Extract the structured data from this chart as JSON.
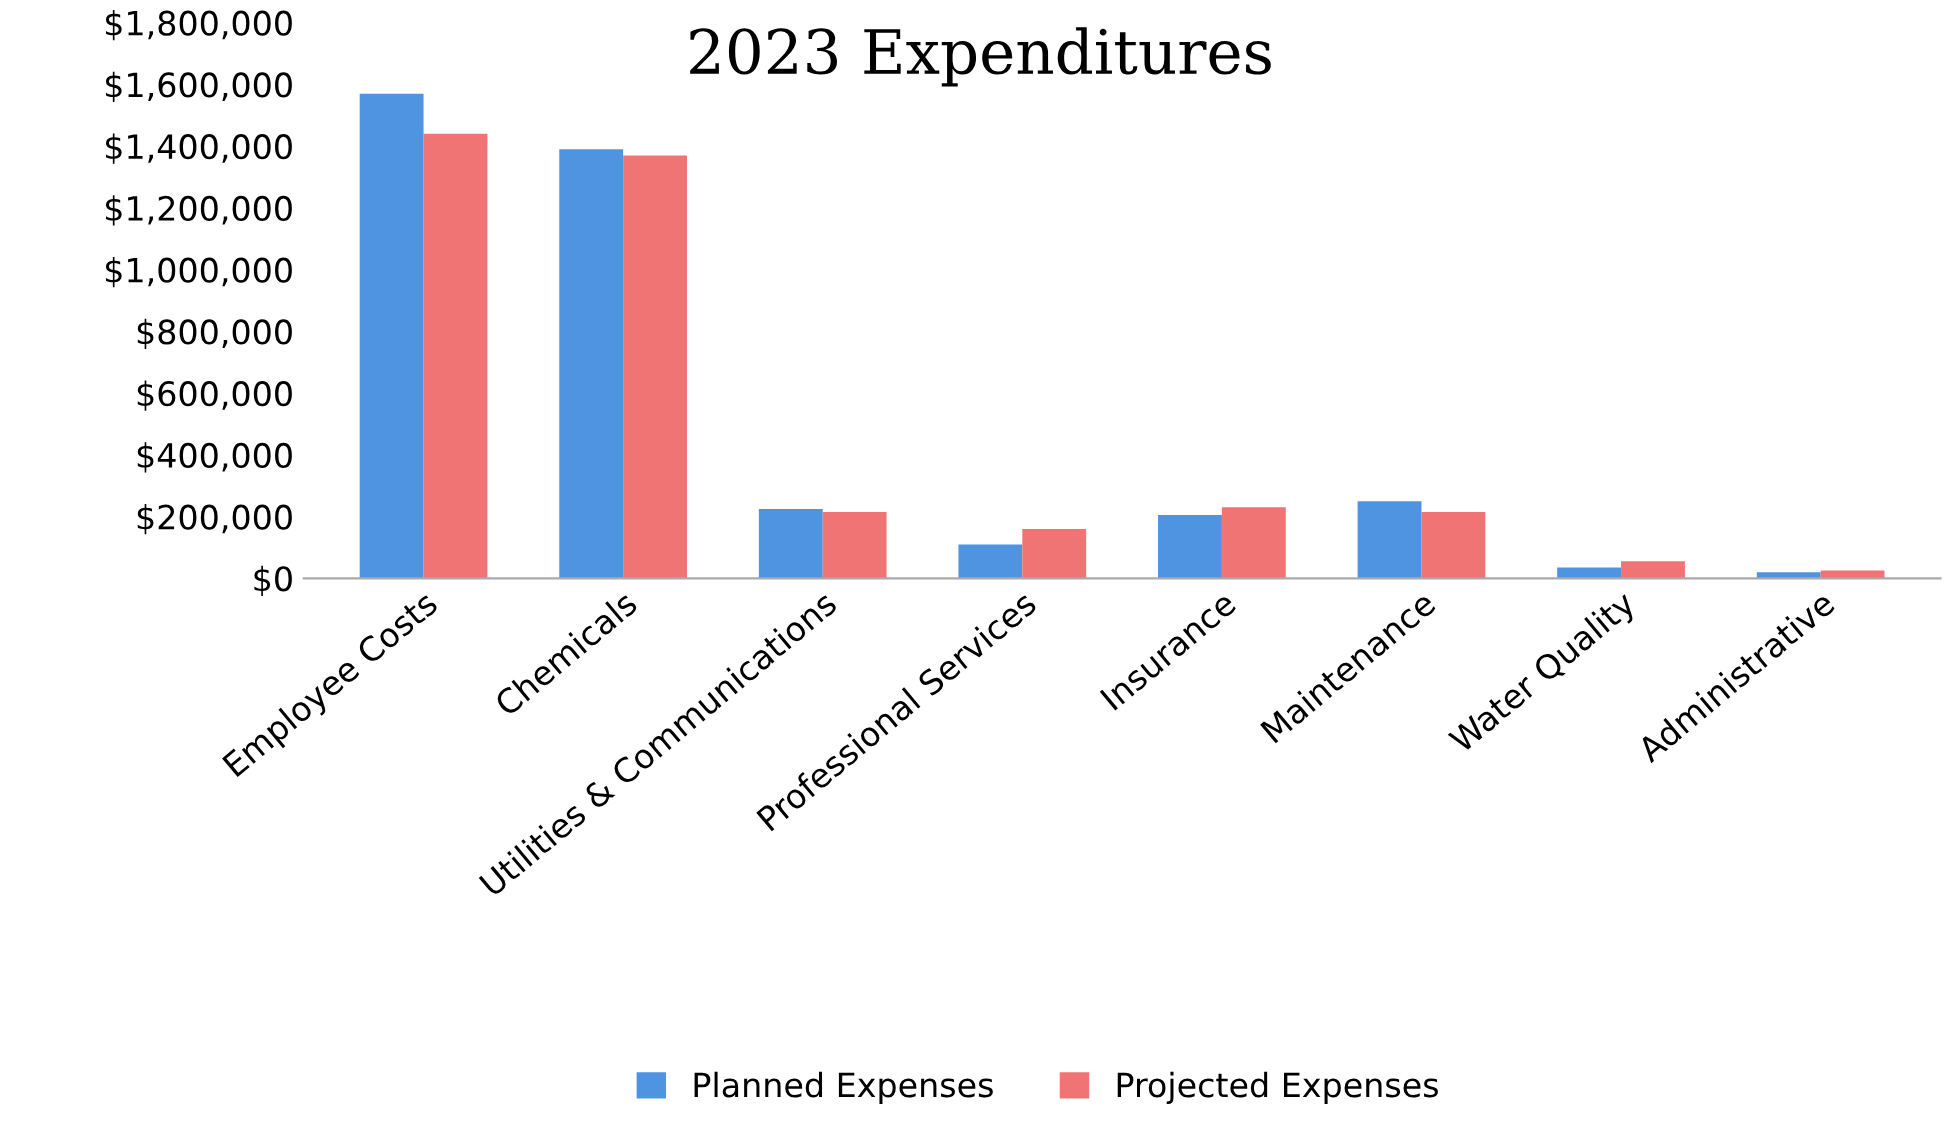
{
  "chart_data": {
    "type": "bar",
    "title": "2023 Expenditures",
    "categories": [
      "Employee Costs",
      "Chemicals",
      "Utilities & Communications",
      "Professional Services",
      "Insurance",
      "Maintenance",
      "Water Quality",
      "Administrative"
    ],
    "series": [
      {
        "name": "Planned Expenses",
        "color": "#4f94e0",
        "values": [
          1570000,
          1390000,
          225000,
          110000,
          205000,
          250000,
          35000,
          20000
        ]
      },
      {
        "name": "Projected Expenses",
        "color": "#f07474",
        "values": [
          1440000,
          1370000,
          215000,
          160000,
          230000,
          215000,
          55000,
          25000
        ]
      }
    ],
    "ylim": [
      0,
      1800000
    ],
    "yticks": [
      {
        "value": 0,
        "label": "$0"
      },
      {
        "value": 200000,
        "label": "$200,000"
      },
      {
        "value": 400000,
        "label": "$400,000"
      },
      {
        "value": 600000,
        "label": "$600,000"
      },
      {
        "value": 800000,
        "label": "$800,000"
      },
      {
        "value": 1000000,
        "label": "$1,000,000"
      },
      {
        "value": 1200000,
        "label": "$1,200,000"
      },
      {
        "value": 1400000,
        "label": "$1,400,000"
      },
      {
        "value": 1600000,
        "label": "$1,600,000"
      },
      {
        "value": 1800000,
        "label": "$1,800,000"
      }
    ],
    "grid": false,
    "legend": "bottom"
  }
}
